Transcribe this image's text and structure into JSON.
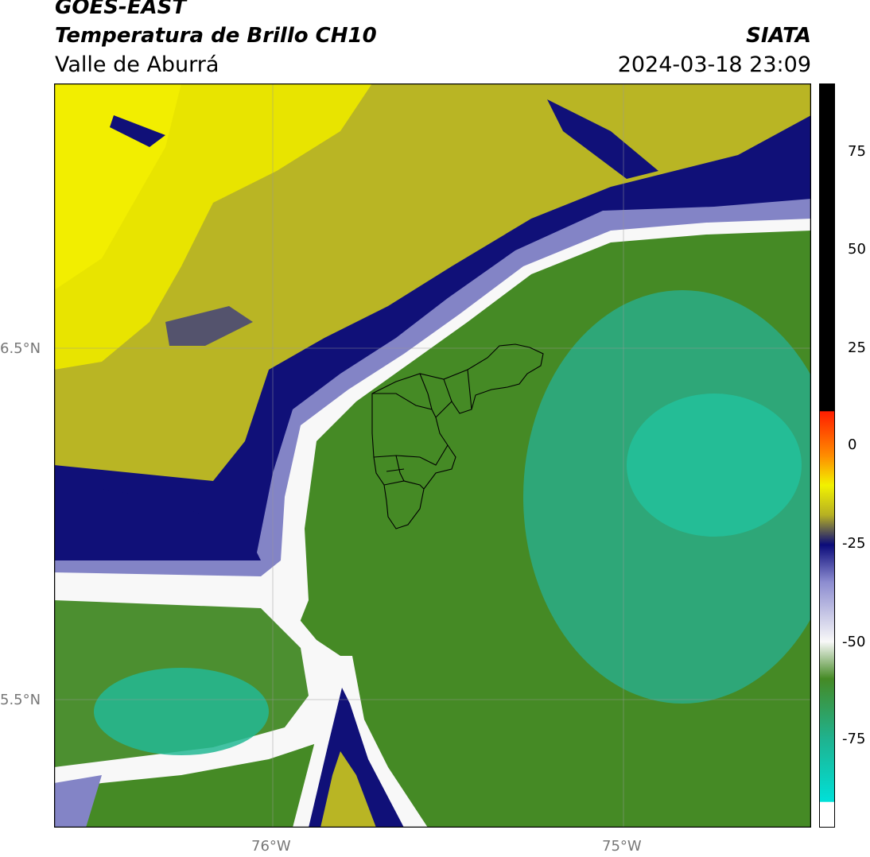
{
  "header": {
    "satellite": "GOES-EAST",
    "product": "Temperatura de Brillo CH10",
    "region": "Valle de Aburrá",
    "org": "SIATA",
    "datetime": "2024-03-18 23:09"
  },
  "axes": {
    "lat_ticks": [
      "6.5°N",
      "5.5°N"
    ],
    "lon_ticks": [
      "76°W",
      "75°W"
    ]
  },
  "colorbar": {
    "ticks": [
      "75",
      "50",
      "25",
      "0",
      "-25",
      "-50",
      "-75"
    ],
    "colors": {
      "black": "#000000",
      "red": "#ff1e00",
      "orange": "#ff8c00",
      "yellow": "#f2f200",
      "olive": "#b6b023",
      "navy": "#0b0b7a",
      "lavender": "#8c8cd0",
      "white": "#f8f8f8",
      "green": "#458a25",
      "teal": "#1fb28e",
      "cyan": "#00e0d8"
    }
  },
  "map_colors": {
    "yellow": "#e8e400",
    "olive": "#c7c21c",
    "darkolive": "#8f8a35",
    "navy": "#101078",
    "lavender": "#7f80c4",
    "white": "#fafafa",
    "green": "#438b22",
    "teal": "#27b58c",
    "lightgreen": "#6fa85a"
  }
}
